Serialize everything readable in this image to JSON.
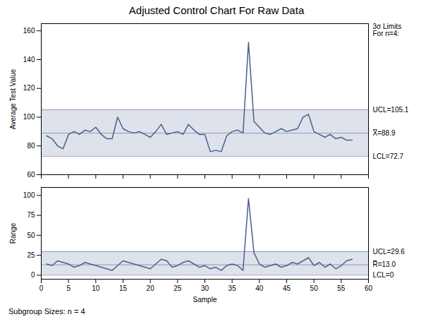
{
  "chart_data": [
    {
      "type": "line",
      "title": "Adjusted Control Chart For Raw Data",
      "ylabel": "Average Test Value",
      "x": [
        1,
        2,
        3,
        4,
        5,
        6,
        7,
        8,
        9,
        10,
        11,
        12,
        13,
        14,
        15,
        16,
        17,
        18,
        19,
        20,
        21,
        22,
        23,
        24,
        25,
        26,
        27,
        28,
        29,
        30,
        31,
        32,
        33,
        34,
        35,
        36,
        37,
        38,
        39,
        40,
        41,
        42,
        43,
        44,
        45,
        46,
        47,
        48,
        49,
        50,
        51,
        52,
        53,
        54,
        55,
        56,
        57
      ],
      "values": [
        87,
        85,
        80,
        78,
        88,
        90,
        88,
        91,
        90,
        93,
        88,
        85,
        85,
        100,
        92,
        90,
        89,
        90,
        88,
        86,
        90,
        95,
        88,
        89,
        90,
        88,
        95,
        91,
        88,
        88,
        76,
        77,
        76,
        87,
        90,
        91,
        89,
        152,
        97,
        93,
        89,
        88,
        90,
        92,
        90,
        91,
        92,
        100,
        102,
        90,
        88,
        86,
        88,
        85,
        86,
        84,
        84
      ],
      "color": "#4a6090",
      "control_limits": [
        {
          "value": 105.1,
          "label": "UCL=105.1"
        },
        {
          "value": 88.9,
          "label": "X̅=88.9"
        },
        {
          "value": 72.7,
          "label": "LCL=72.7"
        }
      ],
      "annotations": [
        "3σ Limits\nFor n=4:"
      ],
      "xlim": [
        0,
        60
      ],
      "xticks": [
        0,
        5,
        10,
        15,
        20,
        25,
        30,
        35,
        40,
        45,
        50,
        55,
        60
      ],
      "ylim": [
        60,
        165
      ],
      "yticks": [
        60,
        80,
        100,
        120,
        140,
        160
      ],
      "tick_labels": "y",
      "grid": false
    },
    {
      "type": "line",
      "xlabel": "Sample",
      "ylabel": "Range",
      "x": [
        1,
        2,
        3,
        4,
        5,
        6,
        7,
        8,
        9,
        10,
        11,
        12,
        13,
        14,
        15,
        16,
        17,
        18,
        19,
        20,
        21,
        22,
        23,
        24,
        25,
        26,
        27,
        28,
        29,
        30,
        31,
        32,
        33,
        34,
        35,
        36,
        37,
        38,
        39,
        40,
        41,
        42,
        43,
        44,
        45,
        46,
        47,
        48,
        49,
        50,
        51,
        52,
        53,
        54,
        55,
        56,
        57
      ],
      "values": [
        14,
        12,
        18,
        16,
        14,
        10,
        12,
        16,
        14,
        12,
        10,
        8,
        6,
        12,
        18,
        16,
        14,
        12,
        10,
        8,
        14,
        20,
        18,
        10,
        12,
        16,
        18,
        14,
        10,
        12,
        8,
        10,
        6,
        12,
        14,
        12,
        6,
        96,
        28,
        14,
        10,
        12,
        14,
        10,
        12,
        16,
        14,
        18,
        22,
        12,
        16,
        10,
        14,
        8,
        12,
        18,
        20
      ],
      "color": "#4a6090",
      "control_limits": [
        {
          "value": 29.6,
          "label": "UCL=29.6"
        },
        {
          "value": 13.0,
          "label": "R̅=13.0"
        },
        {
          "value": 0,
          "label": "LCL=0"
        }
      ],
      "caption": "Subgroup Sizes:     n = 4",
      "xlim": [
        0,
        60
      ],
      "xticks": [
        0,
        5,
        10,
        15,
        20,
        25,
        30,
        35,
        40,
        45,
        50,
        55,
        60
      ],
      "ylim": [
        -5,
        110
      ],
      "yticks": [
        0,
        25,
        50,
        75,
        100
      ],
      "grid": false
    }
  ]
}
